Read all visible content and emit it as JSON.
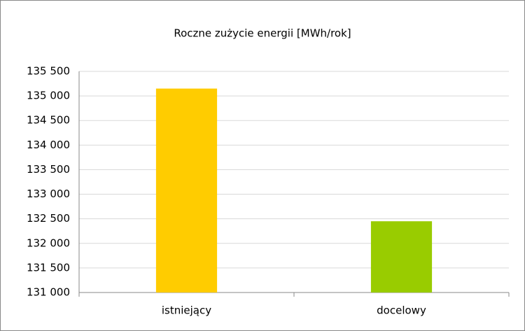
{
  "chart_data": {
    "type": "bar",
    "title": "Roczne zużycie energii [MWh/rok]",
    "categories": [
      "istniejący",
      "docelowy"
    ],
    "values": [
      135150,
      132450
    ],
    "colors": [
      "#ffcc00",
      "#99cc00"
    ],
    "ylim": [
      131000,
      135500
    ],
    "yticks": [
      {
        "value": 131000,
        "label": "131 000"
      },
      {
        "value": 131500,
        "label": "131 500"
      },
      {
        "value": 132000,
        "label": "132 000"
      },
      {
        "value": 132500,
        "label": "132 500"
      },
      {
        "value": 133000,
        "label": "133 000"
      },
      {
        "value": 133500,
        "label": "133 500"
      },
      {
        "value": 134000,
        "label": "134 000"
      },
      {
        "value": 134500,
        "label": "134 500"
      },
      {
        "value": 135000,
        "label": "135 000"
      },
      {
        "value": 135500,
        "label": "135 500"
      }
    ],
    "grid": true
  }
}
